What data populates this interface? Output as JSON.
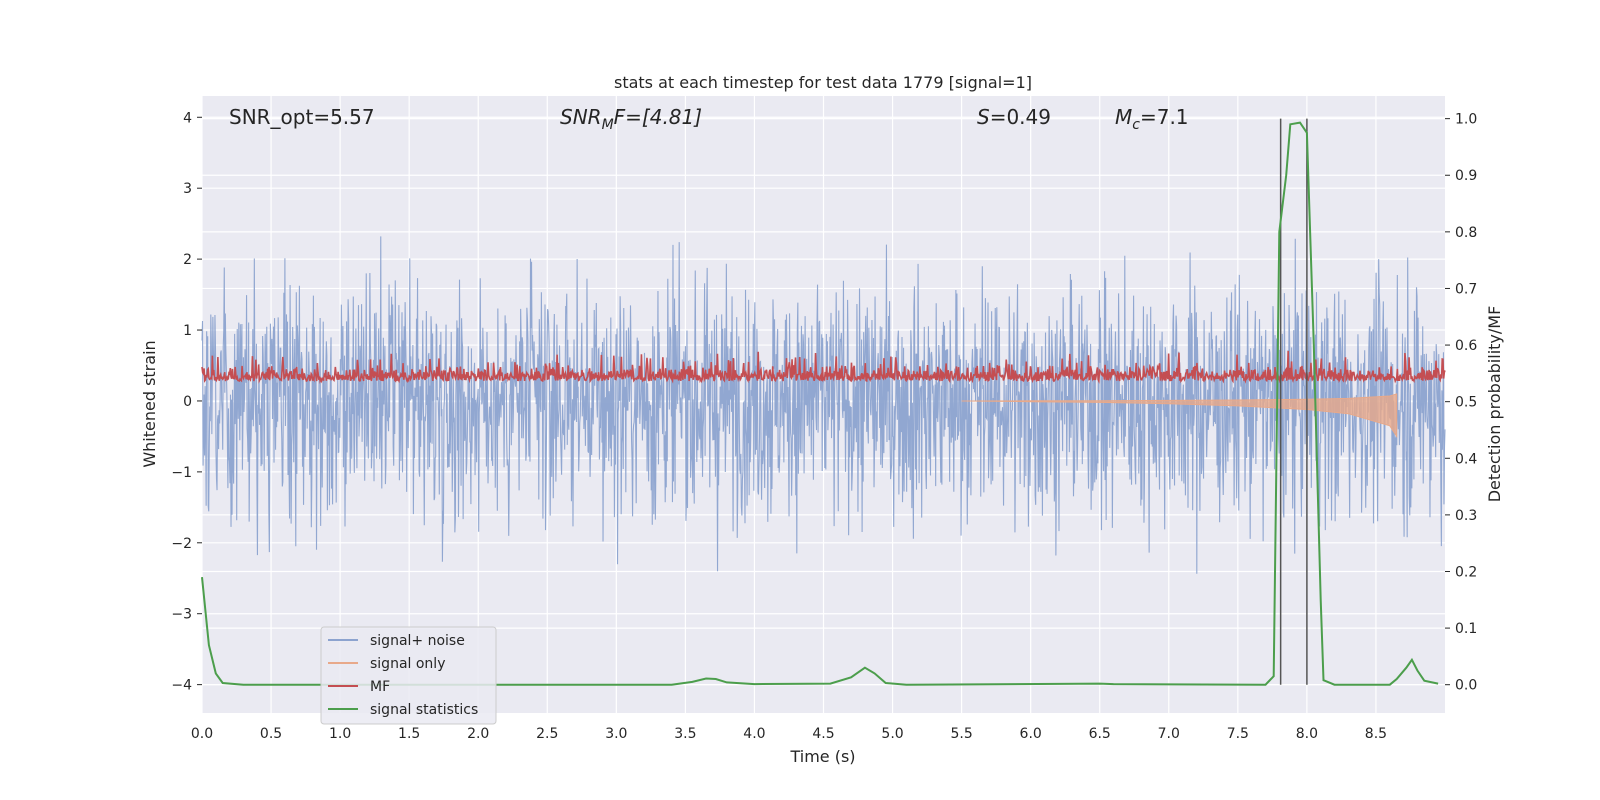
{
  "chart_data": {
    "type": "line",
    "title": "stats at each timestep for test data 1779 [signal=1]",
    "xlabel": "Time (s)",
    "ylabel": "Whitened strain",
    "y2label": "Detection probability/MF",
    "xlim": [
      0,
      9
    ],
    "ylim": [
      -4.4,
      4.3
    ],
    "y2lim": [
      -0.05,
      1.04
    ],
    "xticks": [
      "0.0",
      "0.5",
      "1.0",
      "1.5",
      "2.0",
      "2.5",
      "3.0",
      "3.5",
      "4.0",
      "4.5",
      "5.0",
      "5.5",
      "6.0",
      "6.5",
      "7.0",
      "7.5",
      "8.0",
      "8.5"
    ],
    "yticks": [
      "−4",
      "−3",
      "−2",
      "−1",
      "0",
      "1",
      "2",
      "3",
      "4"
    ],
    "y2ticks": [
      "0.0",
      "0.1",
      "0.2",
      "0.3",
      "0.4",
      "0.5",
      "0.6",
      "0.7",
      "0.8",
      "0.9",
      "1.0"
    ],
    "grid": true,
    "legend_position": "lower-left",
    "annotations": {
      "snr_opt": "SNR_opt=5.57",
      "snr_mf_main": "SNR",
      "snr_mf_sub": "M",
      "snr_mf_rest": "F=[4.81]",
      "s_main": "S",
      "s_rest": "=0.49",
      "mc_main": "M",
      "mc_sub": "c",
      "mc_rest": "=7.1"
    },
    "vlines": [
      7.81,
      8.0
    ],
    "series": [
      {
        "name": "signal+ noise",
        "color": "#8ca3cf",
        "axis": "left",
        "description_range": [
          -3.8,
          3.9
        ],
        "envelope_typical": [
          -1.5,
          1.5
        ]
      },
      {
        "name": "signal only",
        "color": "#e8a98a",
        "axis": "left",
        "points": [
          [
            5.5,
            0.0
          ],
          [
            6.0,
            -0.01
          ],
          [
            6.5,
            -0.02
          ],
          [
            7.0,
            -0.04
          ],
          [
            7.5,
            -0.07
          ],
          [
            8.0,
            -0.12
          ],
          [
            8.3,
            -0.18
          ],
          [
            8.6,
            -0.35
          ],
          [
            8.65,
            -0.5
          ]
        ]
      },
      {
        "name": "MF",
        "color": "#c44e52",
        "axis": "left",
        "typical_range": [
          0.0,
          0.75
        ]
      },
      {
        "name": "signal statistics",
        "color": "#4c9e4c",
        "axis": "right",
        "points": [
          [
            0.0,
            0.19
          ],
          [
            0.05,
            0.07
          ],
          [
            0.1,
            0.02
          ],
          [
            0.15,
            0.003
          ],
          [
            0.3,
            0.0
          ],
          [
            3.4,
            0.0
          ],
          [
            3.55,
            0.005
          ],
          [
            3.65,
            0.011
          ],
          [
            3.72,
            0.01
          ],
          [
            3.8,
            0.004
          ],
          [
            4.0,
            0.001
          ],
          [
            4.55,
            0.002
          ],
          [
            4.7,
            0.013
          ],
          [
            4.8,
            0.03
          ],
          [
            4.87,
            0.02
          ],
          [
            4.95,
            0.003
          ],
          [
            5.1,
            0.0
          ],
          [
            6.5,
            0.002
          ],
          [
            6.6,
            0.001
          ],
          [
            7.7,
            0.0
          ],
          [
            7.76,
            0.015
          ],
          [
            7.8,
            0.8
          ],
          [
            7.85,
            0.9
          ],
          [
            7.88,
            0.99
          ],
          [
            7.95,
            0.993
          ],
          [
            8.0,
            0.975
          ],
          [
            8.05,
            0.6
          ],
          [
            8.1,
            0.15
          ],
          [
            8.12,
            0.008
          ],
          [
            8.2,
            0.0
          ],
          [
            8.6,
            0.0
          ],
          [
            8.65,
            0.01
          ],
          [
            8.72,
            0.03
          ],
          [
            8.76,
            0.044
          ],
          [
            8.8,
            0.025
          ],
          [
            8.85,
            0.007
          ],
          [
            8.95,
            0.002
          ]
        ]
      }
    ]
  }
}
